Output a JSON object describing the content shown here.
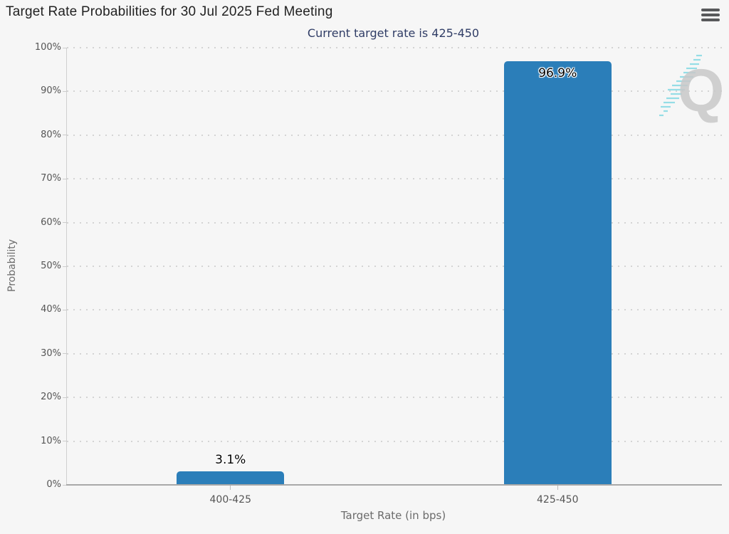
{
  "header": {
    "title": "Target Rate Probabilities for 30 Jul 2025 Fed Meeting"
  },
  "icons": {
    "menu": "hamburger-menu",
    "watermark": "quikstrike-q-logo"
  },
  "watermark": {
    "letter": "Q"
  },
  "chart_data": {
    "type": "bar",
    "title": "Target Rate Probabilities for 30 Jul 2025 Fed Meeting",
    "subtitle": "Current target rate is 425-450",
    "categories": [
      "400-425",
      "425-450"
    ],
    "values": [
      3.1,
      96.9
    ],
    "value_labels": [
      "3.1%",
      "96.9%"
    ],
    "xlabel": "Target Rate (in bps)",
    "ylabel": "Probability",
    "ylim": [
      0,
      100
    ],
    "ytick_step": 10,
    "ytick_labels": [
      "0%",
      "10%",
      "20%",
      "30%",
      "40%",
      "50%",
      "60%",
      "70%",
      "80%",
      "90%",
      "100%"
    ],
    "grid": "horizontal-dotted",
    "legend_position": "none",
    "bar_color": "#2b7eb9",
    "subtitle_color": "#303d66",
    "title_color": "#222222",
    "axis_text_color": "#555555",
    "background_color": "#f6f6f6"
  }
}
